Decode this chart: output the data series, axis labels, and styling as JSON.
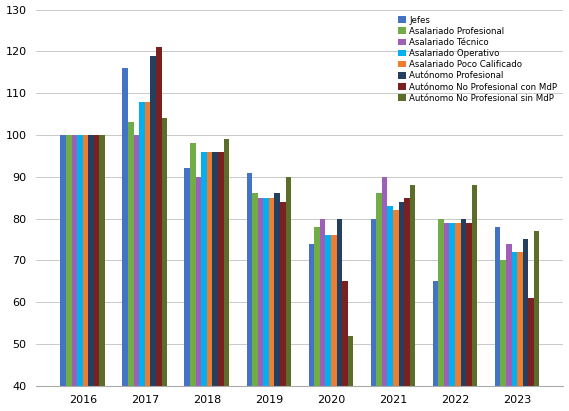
{
  "years": [
    2016,
    2017,
    2018,
    2019,
    2020,
    2021,
    2022,
    2023
  ],
  "series": [
    {
      "name": "Jefes",
      "color": "#4472C4",
      "values": [
        100,
        116,
        92,
        91,
        74,
        80,
        65,
        78
      ]
    },
    {
      "name": "Asalariado Profesional",
      "color": "#70AD47",
      "values": [
        100,
        103,
        98,
        86,
        78,
        86,
        80,
        70
      ]
    },
    {
      "name": "Asalariado Técnico",
      "color": "#9E5FB6",
      "values": [
        100,
        100,
        90,
        85,
        80,
        90,
        79,
        74
      ]
    },
    {
      "name": "Asalariado Operativo",
      "color": "#00B0F0",
      "values": [
        100,
        108,
        96,
        85,
        76,
        83,
        79,
        72
      ]
    },
    {
      "name": "Asalariado Poco Calificado",
      "color": "#ED7D31",
      "values": [
        100,
        108,
        96,
        85,
        76,
        82,
        79,
        72
      ]
    },
    {
      "name": "Autónomo Profesional",
      "color": "#243F60",
      "values": [
        100,
        119,
        96,
        86,
        80,
        84,
        80,
        75
      ]
    },
    {
      "name": "Autónomo No Profesional con MdP",
      "color": "#7B2020",
      "values": [
        100,
        121,
        96,
        84,
        65,
        85,
        79,
        61
      ]
    },
    {
      "name": "Autónomo No Profesional sin MdP",
      "color": "#5A6E2A",
      "values": [
        100,
        104,
        99,
        90,
        52,
        88,
        88,
        77
      ]
    }
  ],
  "ylim": [
    40,
    130
  ],
  "yticks": [
    40,
    50,
    60,
    70,
    80,
    90,
    100,
    110,
    120,
    130
  ],
  "grid_color": "#C0C0C0",
  "background_color": "#FFFFFF",
  "bar_width": 0.09
}
